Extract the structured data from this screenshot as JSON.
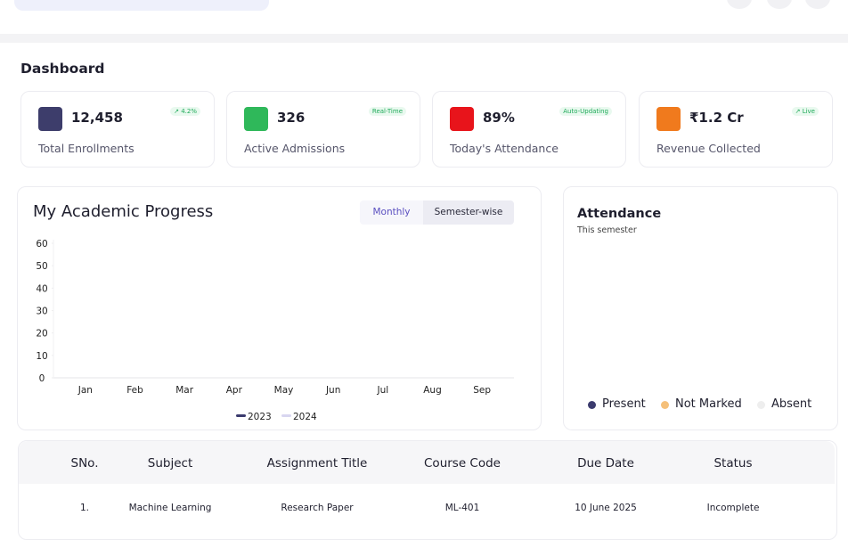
{
  "dashboard": {
    "title": "Dashboard"
  },
  "stats": [
    {
      "value": "12,458",
      "label": "Total Enrollments",
      "badge": "↗ 4.2%",
      "color": "#3d3d6b"
    },
    {
      "value": "326",
      "label": "Active Admissions",
      "badge": "Real-Time",
      "color": "#2fb85a"
    },
    {
      "value": "89%",
      "label": "Today's Attendance",
      "badge": "Auto-Updating",
      "color": "#e8141b"
    },
    {
      "value": "₹1.2 Cr",
      "label": "Revenue Collected",
      "badge": "↗ Live",
      "color": "#f07a1d"
    }
  ],
  "academic_progress": {
    "title": "My Academic Progress",
    "toggles": [
      "Monthly",
      "Semester-wise"
    ],
    "chart": {
      "type": "line",
      "categories": [
        "Jan",
        "Feb",
        "Mar",
        "Apr",
        "May",
        "Jun",
        "Jul",
        "Aug",
        "Sep"
      ],
      "ylim": [
        0,
        60
      ],
      "yticks": [
        0,
        10,
        20,
        30,
        40,
        50,
        60
      ],
      "series": [
        {
          "name": "2023",
          "color": "#3b3b6e",
          "values": [
            null,
            null,
            null,
            null,
            null,
            null,
            null,
            null,
            null
          ]
        },
        {
          "name": "2024",
          "color": "#d8d6f0",
          "values": [
            null,
            null,
            null,
            null,
            null,
            null,
            null,
            null,
            null
          ]
        }
      ]
    }
  },
  "attendance": {
    "title": "Attendance",
    "subtitle": "This semester",
    "legend": [
      {
        "name": "Present",
        "color": "#3b3b6e"
      },
      {
        "name": "Not Marked",
        "color": "#f5c07a"
      },
      {
        "name": "Absent",
        "color": "#eeeeee"
      }
    ]
  },
  "table": {
    "headers": [
      "SNo.",
      "Subject",
      "Assignment Title",
      "Course Code",
      "Due Date",
      "Status"
    ],
    "rows": [
      [
        "1.",
        "Machine Learning",
        "Research Paper",
        "ML-401",
        "10 June 2025",
        "Incomplete"
      ]
    ]
  }
}
